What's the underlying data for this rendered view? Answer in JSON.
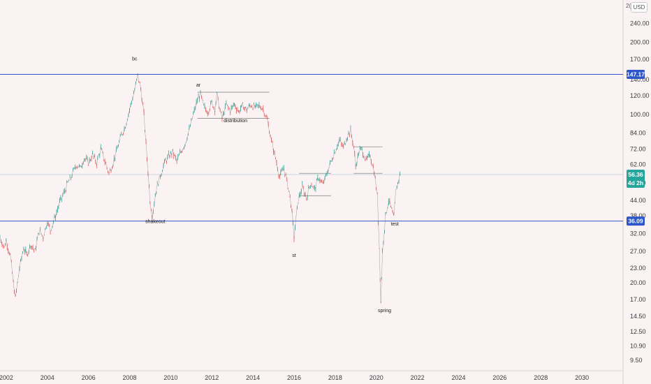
{
  "header": {
    "currency": "USD",
    "top_tick": "2("
  },
  "chart_data": {
    "type": "line",
    "scale": "log",
    "ylim": [
      8.6,
      300
    ],
    "xlim": [
      2001.7,
      2032.0
    ],
    "y_ticks": [
      "9.50",
      "10.90",
      "12.50",
      "14.50",
      "17.00",
      "20.00",
      "23.00",
      "27.00",
      "32.00",
      "38.00",
      "44.00",
      "52.00",
      "62.00",
      "72.00",
      "84.00",
      "100.00",
      "120.00",
      "140.00",
      "170.00",
      "200.00",
      "240.00"
    ],
    "x_ticks": [
      "2002",
      "2004",
      "2006",
      "2008",
      "2010",
      "2012",
      "2014",
      "2016",
      "2018",
      "2020",
      "2022",
      "2024",
      "2026",
      "2028",
      "2030"
    ],
    "series": [
      {
        "values": [
          [
            2001.7,
            31.0
          ],
          [
            2001.9,
            28.0
          ],
          [
            2002.0,
            30.0
          ],
          [
            2002.2,
            26.0
          ],
          [
            2002.35,
            20.0
          ],
          [
            2002.45,
            17.2
          ],
          [
            2002.65,
            23.0
          ],
          [
            2002.85,
            28.0
          ],
          [
            2003.0,
            26.0
          ],
          [
            2003.2,
            29.0
          ],
          [
            2003.4,
            27.0
          ],
          [
            2003.6,
            33.0
          ],
          [
            2003.8,
            31.0
          ],
          [
            2004.0,
            36.0
          ],
          [
            2004.15,
            33.0
          ],
          [
            2004.4,
            38.0
          ],
          [
            2004.6,
            43.0
          ],
          [
            2004.8,
            47.0
          ],
          [
            2005.0,
            52.0
          ],
          [
            2005.2,
            56.0
          ],
          [
            2005.4,
            62.0
          ],
          [
            2005.6,
            60.0
          ],
          [
            2005.8,
            66.0
          ],
          [
            2006.0,
            63.0
          ],
          [
            2006.2,
            68.0
          ],
          [
            2006.4,
            63.0
          ],
          [
            2006.6,
            72.0
          ],
          [
            2006.8,
            64.0
          ],
          [
            2007.0,
            57.0
          ],
          [
            2007.2,
            63.0
          ],
          [
            2007.4,
            72.0
          ],
          [
            2007.6,
            82.0
          ],
          [
            2007.8,
            90.0
          ],
          [
            2008.0,
            105.0
          ],
          [
            2008.15,
            118.0
          ],
          [
            2008.3,
            132.0
          ],
          [
            2008.4,
            146.0
          ],
          [
            2008.55,
            128.0
          ],
          [
            2008.7,
            100.0
          ],
          [
            2008.85,
            66.0
          ],
          [
            2009.0,
            44.0
          ],
          [
            2009.1,
            38.0
          ],
          [
            2009.3,
            49.0
          ],
          [
            2009.5,
            56.0
          ],
          [
            2009.7,
            63.0
          ],
          [
            2009.9,
            67.0
          ],
          [
            2010.1,
            70.0
          ],
          [
            2010.3,
            64.0
          ],
          [
            2010.5,
            70.0
          ],
          [
            2010.7,
            76.0
          ],
          [
            2010.9,
            86.0
          ],
          [
            2011.1,
            100.0
          ],
          [
            2011.3,
            115.0
          ],
          [
            2011.45,
            122.0
          ],
          [
            2011.6,
            108.0
          ],
          [
            2011.8,
            103.0
          ],
          [
            2012.0,
            112.0
          ],
          [
            2012.15,
            106.0
          ],
          [
            2012.25,
            121.0
          ],
          [
            2012.4,
            104.0
          ],
          [
            2012.5,
            96.0
          ],
          [
            2012.7,
            110.0
          ],
          [
            2012.9,
            104.0
          ],
          [
            2013.1,
            111.0
          ],
          [
            2013.3,
            103.0
          ],
          [
            2013.5,
            109.0
          ],
          [
            2013.7,
            105.0
          ],
          [
            2013.9,
            110.0
          ],
          [
            2014.1,
            107.0
          ],
          [
            2014.3,
            109.0
          ],
          [
            2014.5,
            106.0
          ],
          [
            2014.7,
            95.0
          ],
          [
            2014.9,
            78.0
          ],
          [
            2015.1,
            66.0
          ],
          [
            2015.3,
            55.0
          ],
          [
            2015.5,
            60.0
          ],
          [
            2015.65,
            53.0
          ],
          [
            2015.8,
            46.0
          ],
          [
            2015.9,
            39.0
          ],
          [
            2016.0,
            31.0
          ],
          [
            2016.1,
            37.0
          ],
          [
            2016.2,
            44.0
          ],
          [
            2016.4,
            50.0
          ],
          [
            2016.6,
            45.0
          ],
          [
            2016.8,
            52.0
          ],
          [
            2017.0,
            49.0
          ],
          [
            2017.2,
            55.0
          ],
          [
            2017.4,
            51.0
          ],
          [
            2017.6,
            57.0
          ],
          [
            2017.8,
            64.0
          ],
          [
            2018.0,
            71.0
          ],
          [
            2018.2,
            78.0
          ],
          [
            2018.4,
            73.0
          ],
          [
            2018.6,
            82.0
          ],
          [
            2018.75,
            86.0
          ],
          [
            2018.9,
            74.0
          ],
          [
            2019.0,
            61.0
          ],
          [
            2019.15,
            70.0
          ],
          [
            2019.3,
            72.0
          ],
          [
            2019.5,
            64.0
          ],
          [
            2019.7,
            68.0
          ],
          [
            2019.9,
            58.0
          ],
          [
            2020.05,
            46.0
          ],
          [
            2020.15,
            28.0
          ],
          [
            2020.22,
            16.5
          ],
          [
            2020.3,
            27.0
          ],
          [
            2020.45,
            38.0
          ],
          [
            2020.6,
            44.0
          ],
          [
            2020.75,
            40.0
          ],
          [
            2020.85,
            37.0
          ],
          [
            2020.95,
            48.0
          ],
          [
            2021.05,
            52.0
          ],
          [
            2021.15,
            56.4
          ]
        ]
      }
    ],
    "horizontal_levels": [
      {
        "value": 147.17,
        "label": "147.17",
        "color": "#2c56c9"
      },
      {
        "value": 36.09,
        "label": "36.09",
        "color": "#2c56c9"
      }
    ],
    "last_price": {
      "value": 56.36,
      "label": "56.36",
      "countdown": "4d 2h",
      "color": "#26a69a"
    },
    "annotations": [
      {
        "text": "bc",
        "x": 2008.25,
        "y": 168.0
      },
      {
        "text": "ar",
        "x": 2011.35,
        "y": 131.0
      },
      {
        "text": "distribution",
        "x": 2013.15,
        "y": 93.0
      },
      {
        "text": "shakeout",
        "x": 2009.25,
        "y": 35.4
      },
      {
        "text": "st",
        "x": 2016.0,
        "y": 25.6
      },
      {
        "text": "test",
        "x": 2020.9,
        "y": 34.6
      },
      {
        "text": "spring",
        "x": 2020.4,
        "y": 15.1
      }
    ],
    "ranges": [
      {
        "x0": 2011.3,
        "x1": 2014.8,
        "y0": 96.5,
        "y1": 124.0
      },
      {
        "x0": 2016.25,
        "x1": 2017.8,
        "y0": 46.0,
        "y1": 57.0
      },
      {
        "x0": 2018.9,
        "x1": 2020.3,
        "y0": 57.0,
        "y1": 73.5
      }
    ]
  }
}
